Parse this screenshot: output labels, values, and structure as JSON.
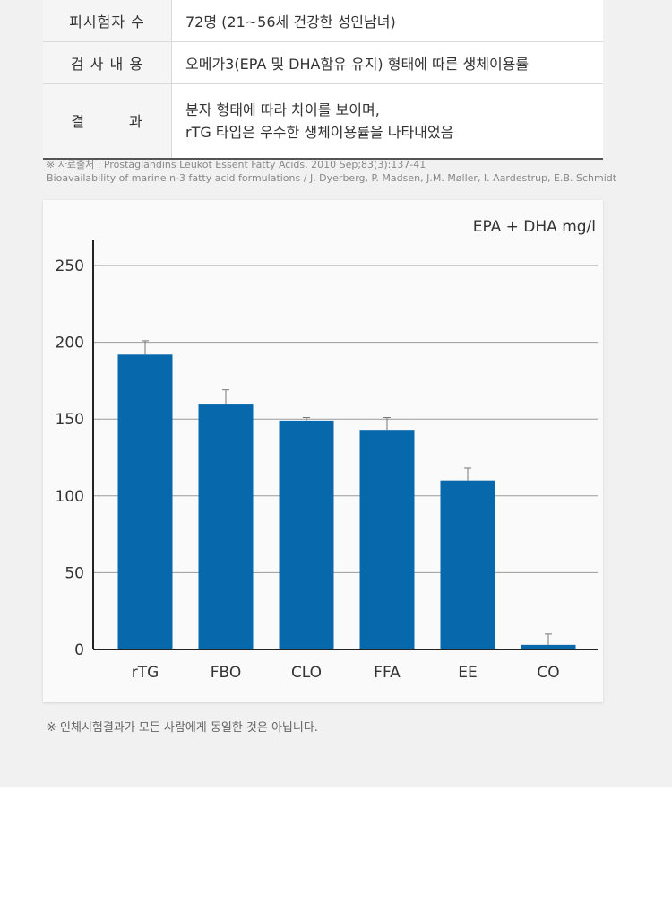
{
  "table": {
    "rows": [
      {
        "label": "피시험자 수",
        "value": "72명 (21~56세 건강한 성인남녀)"
      },
      {
        "label": "검 사 내 용",
        "value": "오메가3(EPA 및 DHA함유 유지) 형태에 따른 생체이용률"
      },
      {
        "label": "결        과",
        "value_lines": [
          "분자 형태에 따라 차이를 보이며,",
          "rTG 타입은 우수한 생체이용률을 나타내었음"
        ]
      }
    ]
  },
  "source": {
    "line1": "※ 자료출처 : Prostaglandins Leukot Essent Fatty Acids. 2010 Sep;83(3):137-41",
    "line2": "Bioavailability of marine n-3 fatty acid formulations / J. Dyerberg, P. Madsen, J.M. Møller, I. Aardestrup, E.B. Schmidt"
  },
  "chart_data": {
    "type": "bar",
    "title": "",
    "unit_label": "EPA + DHA mg/l",
    "categories": [
      "rTG",
      "FBO",
      "CLO",
      "FFA",
      "EE",
      "CO"
    ],
    "values": [
      192,
      160,
      149,
      143,
      110,
      3
    ],
    "error_high": [
      201,
      169,
      151,
      151,
      118,
      10
    ],
    "ylim": [
      0,
      250
    ],
    "yticks": [
      0,
      50,
      100,
      150,
      200,
      250
    ],
    "grid": true,
    "bar_color": "#0868ac"
  },
  "footnote": "※ 인체시험결과가 모든 사람에게 동일한 것은 아닙니다."
}
